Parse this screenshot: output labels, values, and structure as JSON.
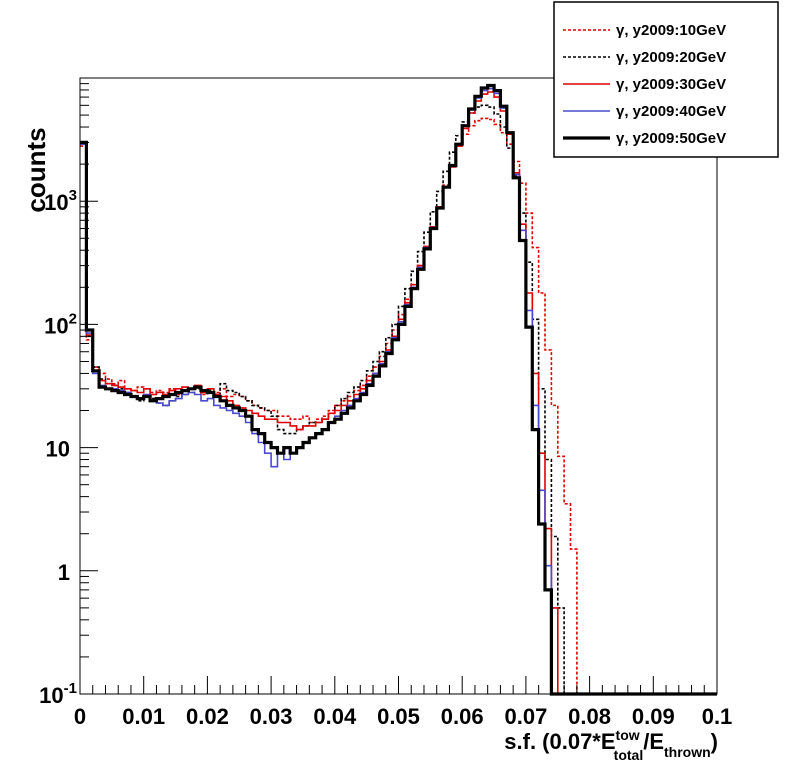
{
  "chart_data": {
    "type": "line",
    "xlabel_parts": {
      "main": "s.f. (0.07*E",
      "sup": "tow",
      "sub": "total",
      "mid": "/E",
      "sub2": "thrown",
      "end": ")"
    },
    "ylabel": "counts",
    "xlim": [
      0,
      0.1
    ],
    "ylim": [
      0.1,
      10000
    ],
    "y_scale": "log",
    "x_ticks": [
      "0",
      "0.01",
      "0.02",
      "0.03",
      "0.04",
      "0.05",
      "0.06",
      "0.07",
      "0.08",
      "0.09",
      "0.1"
    ],
    "y_ticks": [
      {
        "base": "10",
        "exp": "-1",
        "value": 0.1
      },
      {
        "base": "1",
        "exp": "",
        "value": 1
      },
      {
        "base": "10",
        "exp": "",
        "value": 10
      },
      {
        "base": "10",
        "exp": "2",
        "value": 100
      },
      {
        "base": "10",
        "exp": "3",
        "value": 1000
      }
    ],
    "legend_position": "top-right",
    "bin_edges_start": 0,
    "bin_width": 0.001,
    "series": [
      {
        "name": "γ, y2009:10GeV",
        "color": "#e00000",
        "style": "dotted",
        "values": [
          2800,
          75,
          45,
          40,
          36,
          33,
          35,
          30,
          29,
          31,
          30,
          28,
          29,
          28,
          30,
          27,
          29,
          30,
          31,
          27,
          29,
          28,
          30,
          26,
          27,
          26,
          24,
          22,
          21,
          20,
          20,
          18,
          18,
          17,
          17,
          18,
          16,
          17,
          18,
          20,
          22,
          24,
          26,
          29,
          32,
          38,
          45,
          55,
          70,
          90,
          120,
          160,
          210,
          300,
          420,
          600,
          900,
          1350,
          1950,
          2800,
          3500,
          4100,
          4500,
          4700,
          4600,
          4200,
          3600,
          2900,
          2100,
          1400,
          800,
          420,
          180,
          62,
          22,
          8.5,
          3.5,
          1.5,
          0.1,
          0.1,
          0.1,
          0.1,
          0.1,
          0.1,
          0.1,
          0.1,
          0.1,
          0.1,
          0.1,
          0.1,
          0.1,
          0.1,
          0.1,
          0.1,
          0.1,
          0.1,
          0.1,
          0.1,
          0.1,
          0.1
        ]
      },
      {
        "name": "γ, y2009:20GeV",
        "color": "#000000",
        "style": "dotted",
        "values": [
          2900,
          80,
          45,
          36,
          33,
          32,
          30,
          28,
          26,
          24,
          26,
          25,
          23,
          22,
          24,
          26,
          27,
          28,
          30,
          28,
          29,
          27,
          33,
          29,
          28,
          26,
          24,
          22,
          21,
          20,
          18,
          14,
          13,
          13,
          14,
          15,
          16,
          16,
          17,
          19,
          22,
          25,
          28,
          31,
          35,
          42,
          50,
          60,
          78,
          100,
          140,
          195,
          270,
          390,
          560,
          820,
          1200,
          1750,
          2500,
          3400,
          4400,
          5200,
          5800,
          6000,
          5800,
          5100,
          4000,
          2700,
          1600,
          800,
          320,
          110,
          30,
          8,
          1.9,
          0.5,
          0.1,
          0.1,
          0.1,
          0.1,
          0.1,
          0.1,
          0.1,
          0.1,
          0.1,
          0.1,
          0.1,
          0.1,
          0.1,
          0.1,
          0.1,
          0.1,
          0.1,
          0.1,
          0.1,
          0.1,
          0.1,
          0.1,
          0.1,
          0.1
        ]
      },
      {
        "name": "γ, y2009:30GeV",
        "color": "#e00000",
        "style": "solid",
        "values": [
          2900,
          82,
          42,
          35,
          33,
          32,
          31,
          30,
          29,
          28,
          30,
          27,
          28,
          27,
          29,
          30,
          31,
          30,
          32,
          28,
          30,
          27,
          26,
          24,
          22,
          21,
          20,
          19,
          18,
          17,
          17,
          16,
          16,
          15,
          14,
          15,
          15,
          16,
          17,
          19,
          20,
          22,
          24,
          27,
          30,
          35,
          40,
          50,
          62,
          80,
          110,
          150,
          210,
          300,
          430,
          620,
          900,
          1300,
          1900,
          2800,
          3900,
          5200,
          6500,
          7400,
          7700,
          7000,
          5400,
          3500,
          1700,
          650,
          180,
          40,
          9,
          2.2,
          0.5,
          0.1,
          0.1,
          0.1,
          0.1,
          0.1,
          0.1,
          0.1,
          0.1,
          0.1,
          0.1,
          0.1,
          0.1,
          0.1,
          0.1,
          0.1,
          0.1,
          0.1,
          0.1,
          0.1,
          0.1,
          0.1,
          0.1,
          0.1,
          0.1,
          0.1
        ]
      },
      {
        "name": "γ, y2009:40GeV",
        "color": "#4a4ad0",
        "style": "solid",
        "values": [
          2900,
          85,
          40,
          32,
          30,
          30,
          29,
          28,
          26,
          25,
          27,
          24,
          23,
          22,
          24,
          25,
          27,
          28,
          27,
          24,
          25,
          22,
          21,
          20,
          19,
          18,
          16,
          13,
          11,
          9,
          7,
          9,
          8,
          9,
          10,
          11,
          12,
          13,
          14,
          16,
          18,
          20,
          22,
          25,
          28,
          33,
          40,
          48,
          60,
          78,
          105,
          145,
          200,
          290,
          420,
          610,
          890,
          1300,
          1950,
          2900,
          4100,
          5500,
          6900,
          7900,
          8200,
          7500,
          5700,
          3600,
          1650,
          580,
          130,
          22,
          4.5,
          1.1,
          0.1,
          0.1,
          0.1,
          0.1,
          0.1,
          0.1,
          0.1,
          0.1,
          0.1,
          0.1,
          0.1,
          0.1,
          0.1,
          0.1,
          0.1,
          0.1,
          0.1,
          0.1,
          0.1,
          0.1,
          0.1,
          0.1,
          0.1,
          0.1,
          0.1,
          0.1
        ]
      },
      {
        "name": "γ, y2009:50GeV",
        "color": "#000000",
        "style": "thick",
        "values": [
          3000,
          90,
          42,
          31,
          30,
          29,
          28,
          27,
          26,
          25,
          26,
          24,
          25,
          26,
          27,
          28,
          29,
          30,
          31,
          29,
          28,
          26,
          24,
          22,
          21,
          20,
          18,
          14,
          13,
          11,
          10,
          9,
          10,
          9,
          10,
          11,
          12,
          13,
          14,
          16,
          17,
          19,
          21,
          24,
          27,
          32,
          38,
          46,
          58,
          75,
          100,
          140,
          195,
          280,
          410,
          600,
          880,
          1300,
          1950,
          2900,
          4100,
          5600,
          7100,
          8300,
          8700,
          7900,
          5900,
          3600,
          1550,
          480,
          95,
          14,
          2.4,
          0.7,
          0.1,
          0.1,
          0.1,
          0.1,
          0.1,
          0.1,
          0.1,
          0.1,
          0.1,
          0.1,
          0.1,
          0.1,
          0.1,
          0.1,
          0.1,
          0.1,
          0.1,
          0.1,
          0.1,
          0.1,
          0.1,
          0.1,
          0.1,
          0.1,
          0.1,
          0.1
        ]
      }
    ]
  }
}
